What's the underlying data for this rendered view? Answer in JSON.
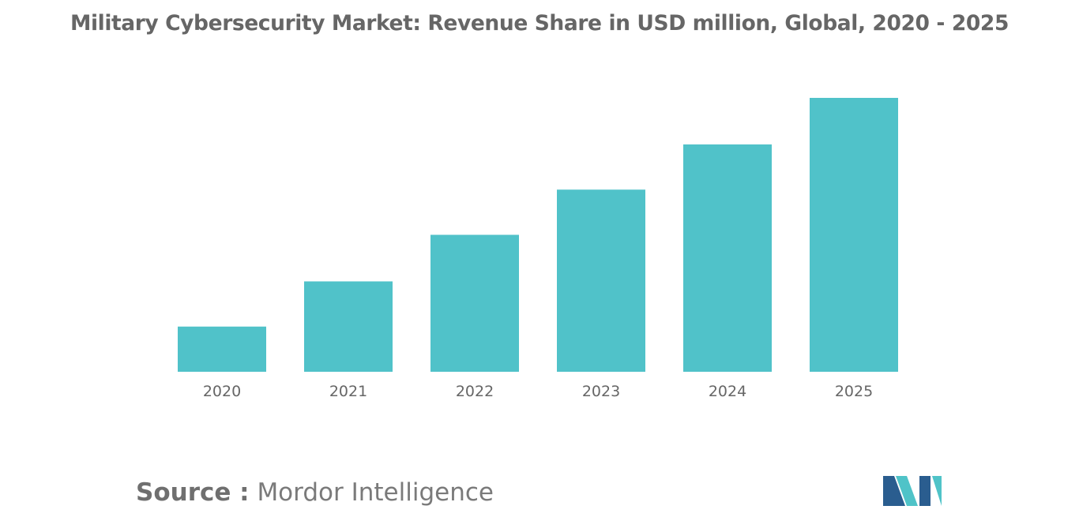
{
  "title": "Military Cybersecurity Market: Revenue Share in USD million, Global, 2020 - 2025",
  "source": {
    "label": "Source :",
    "value": "Mordor Intelligence"
  },
  "colors": {
    "bar": "#50C2C9",
    "logo_dark": "#2A5D8F",
    "logo_light": "#4FC3C8"
  },
  "chart_data": {
    "type": "bar",
    "categories": [
      "2020",
      "2021",
      "2022",
      "2023",
      "2024",
      "2025"
    ],
    "values": [
      16.5,
      33,
      50,
      66.5,
      83,
      100
    ],
    "title": "Military Cybersecurity Market: Revenue Share in USD million, Global, 2020 - 2025",
    "xlabel": "",
    "ylabel": "",
    "ylim": [
      0,
      100
    ],
    "grid": false,
    "legend": "none"
  }
}
